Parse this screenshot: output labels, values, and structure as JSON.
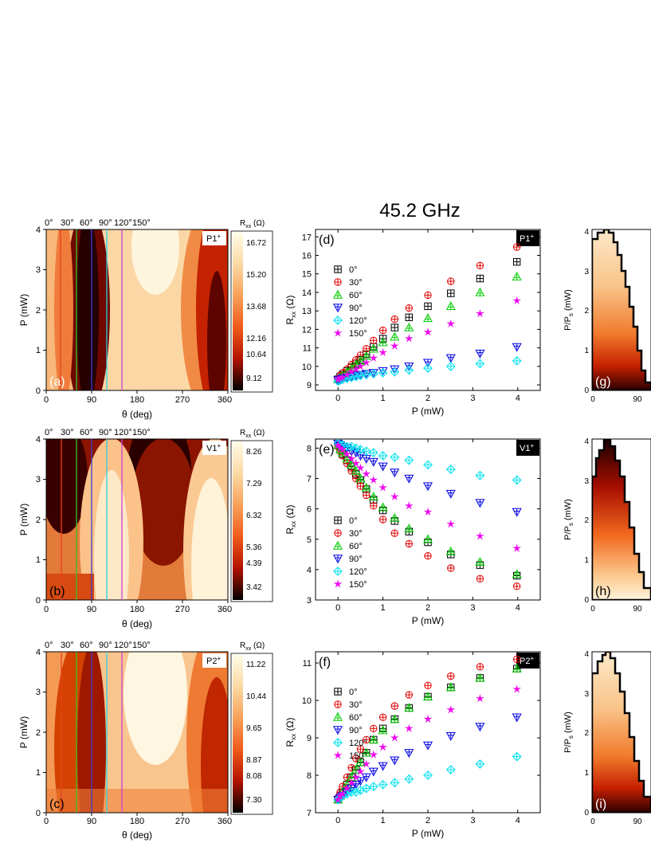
{
  "figure": {
    "title": "45.2 GHz",
    "angle_labels": [
      "0°",
      "30°",
      "60°",
      "90°",
      "120°",
      "150°"
    ],
    "angle_colors": [
      "#e8401c",
      "#35c21e",
      "#3c3cd0",
      "#30d0e0",
      "#d040d0"
    ],
    "colors": {
      "series": [
        "#000000",
        "#e00000",
        "#00cc00",
        "#0000e0",
        "#00e0ee",
        "#ee00ee"
      ],
      "heat": [
        "#000000",
        "#6a0000",
        "#c31900",
        "#f25300",
        "#fba35a",
        "#fde7c5",
        "#fffde8"
      ],
      "tag_bg": "#000000"
    }
  },
  "maps": [
    {
      "panel": "(a)",
      "tag": "P1",
      "tag_sup": "+",
      "xlabel": "θ (deg)",
      "ylabel": "P (mW)",
      "xticks": [
        "0",
        "90",
        "180",
        "270",
        "360"
      ],
      "yticks": [
        "0",
        "1",
        "2",
        "3",
        "4"
      ],
      "cbar_title": "R",
      "cbar_sub": "xx",
      "cbar_unit": " (Ω)",
      "cbar_ticks": [
        "16.72",
        "15.20",
        "13.68",
        "12.16",
        "10.64",
        "9.12"
      ]
    },
    {
      "panel": "(b)",
      "tag": "V1",
      "tag_sup": "+",
      "xlabel": "θ (deg)",
      "ylabel": "P (mW)",
      "xticks": [
        "0",
        "90",
        "180",
        "270",
        "360"
      ],
      "yticks": [
        "0",
        "1",
        "2",
        "3",
        "4"
      ],
      "cbar_title": "R",
      "cbar_sub": "xx",
      "cbar_unit": " (Ω)",
      "cbar_ticks": [
        "8.26",
        "7.29",
        "6.32",
        "5.36",
        "4.39",
        "3.42"
      ]
    },
    {
      "panel": "(c)",
      "tag": "P2",
      "tag_sup": "+",
      "xlabel": "θ (deg)",
      "ylabel": "P (mW)",
      "xticks": [
        "0",
        "90",
        "180",
        "270",
        "360"
      ],
      "yticks": [
        "0",
        "1",
        "2",
        "3",
        "4"
      ],
      "cbar_title": "R",
      "cbar_sub": "xx",
      "cbar_unit": " (Ω)",
      "cbar_ticks": [
        "11.22",
        "10.44",
        "9.65",
        "8.87",
        "8.08",
        "7.30"
      ]
    }
  ],
  "side_panels": [
    {
      "panel": "(g)",
      "ylabel": "P/P",
      "ylabel_sub": "s",
      "ylabel_unit": " (mW)",
      "yticks": [
        "0",
        "1",
        "2",
        "3",
        "4"
      ],
      "xticks": [
        "0",
        "90"
      ]
    },
    {
      "panel": "(h)",
      "ylabel": "P/P",
      "ylabel_sub": "s",
      "ylabel_unit": " (mW)",
      "yticks": [
        "0",
        "1",
        "2",
        "3",
        "4"
      ],
      "xticks": [
        "0",
        "90"
      ]
    },
    {
      "panel": "(i)",
      "ylabel": "P/P",
      "ylabel_sub": "s",
      "ylabel_unit": " (mW)",
      "yticks": [
        "0",
        "1",
        "2",
        "3",
        "4"
      ],
      "xticks": [
        "0",
        "90"
      ]
    }
  ],
  "chart_data": [
    {
      "type": "scatter",
      "panel": "(d)",
      "tag": "P1",
      "tag_sup": "+",
      "xlabel": "P (mW)",
      "ylabel": "R",
      "ylabel_sub": "xx",
      "ylabel_unit": " (Ω)",
      "xlim": [
        -0.5,
        4.5
      ],
      "ylim": [
        8.7,
        17.4
      ],
      "xticks": [
        0,
        1,
        2,
        3,
        4
      ],
      "yticks": [
        9,
        10,
        11,
        12,
        13,
        14,
        15,
        16,
        17
      ],
      "x": [
        0,
        0.05,
        0.1,
        0.2,
        0.3,
        0.4,
        0.5,
        0.63,
        0.79,
        1.0,
        1.26,
        1.58,
        2.0,
        2.51,
        3.16,
        3.98
      ],
      "legend_position": "upper-left",
      "series": [
        {
          "name": "0°",
          "marker": "square-plus",
          "values": [
            9.3,
            9.45,
            9.55,
            9.75,
            9.95,
            10.15,
            10.35,
            10.65,
            11.05,
            11.5,
            12.1,
            12.65,
            13.25,
            13.95,
            14.75,
            15.65
          ]
        },
        {
          "name": "30°",
          "marker": "circle-plus",
          "values": [
            9.35,
            9.5,
            9.65,
            9.85,
            10.1,
            10.35,
            10.6,
            10.95,
            11.4,
            11.95,
            12.55,
            13.15,
            13.85,
            14.6,
            15.45,
            16.45
          ]
        },
        {
          "name": "60°",
          "marker": "triangle-up",
          "values": [
            9.3,
            9.4,
            9.5,
            9.7,
            9.9,
            10.1,
            10.3,
            10.55,
            10.95,
            11.3,
            11.6,
            12.1,
            12.6,
            13.25,
            14.0,
            14.85
          ]
        },
        {
          "name": "90°",
          "marker": "triangle-down",
          "values": [
            9.25,
            9.3,
            9.35,
            9.4,
            9.45,
            9.5,
            9.55,
            9.6,
            9.65,
            9.75,
            9.85,
            10.0,
            10.2,
            10.45,
            10.7,
            11.05
          ]
        },
        {
          "name": "120°",
          "marker": "diamond",
          "values": [
            9.2,
            9.25,
            9.3,
            9.35,
            9.4,
            9.45,
            9.5,
            9.55,
            9.6,
            9.65,
            9.7,
            9.8,
            9.9,
            10.0,
            10.15,
            10.3
          ]
        },
        {
          "name": "150°",
          "marker": "star",
          "values": [
            9.3,
            9.35,
            9.4,
            9.55,
            9.7,
            9.85,
            10.0,
            10.2,
            10.45,
            10.75,
            11.1,
            11.5,
            11.85,
            12.3,
            12.85,
            13.55
          ]
        }
      ]
    },
    {
      "type": "scatter",
      "panel": "(e)",
      "tag": "V1",
      "tag_sup": "+",
      "xlabel": "P (mW)",
      "ylabel": "R",
      "ylabel_sub": "xx",
      "ylabel_unit": " (Ω)",
      "xlim": [
        -0.5,
        4.5
      ],
      "ylim": [
        3,
        8.3
      ],
      "xticks": [
        0,
        1,
        2,
        3,
        4
      ],
      "yticks": [
        3,
        4,
        5,
        6,
        7,
        8
      ],
      "x": [
        0,
        0.05,
        0.1,
        0.2,
        0.3,
        0.4,
        0.5,
        0.63,
        0.79,
        1.0,
        1.26,
        1.58,
        2.0,
        2.51,
        3.16,
        3.98
      ],
      "legend_position": "lower-left",
      "series": [
        {
          "name": "0°",
          "marker": "square-plus",
          "values": [
            8.1,
            7.95,
            7.8,
            7.6,
            7.4,
            7.15,
            6.95,
            6.65,
            6.3,
            5.95,
            5.6,
            5.25,
            4.9,
            4.5,
            4.15,
            3.8
          ]
        },
        {
          "name": "30°",
          "marker": "circle-plus",
          "values": [
            8.05,
            7.9,
            7.75,
            7.5,
            7.25,
            7.0,
            6.75,
            6.45,
            6.1,
            5.65,
            5.2,
            4.85,
            4.45,
            4.05,
            3.7,
            3.45
          ]
        },
        {
          "name": "60°",
          "marker": "triangle-up",
          "values": [
            8.1,
            7.95,
            7.85,
            7.65,
            7.45,
            7.25,
            7.0,
            6.7,
            6.4,
            6.05,
            5.7,
            5.35,
            5.0,
            4.6,
            4.25,
            3.85
          ]
        },
        {
          "name": "90°",
          "marker": "triangle-down",
          "values": [
            8.15,
            8.1,
            8.05,
            8.0,
            7.9,
            7.85,
            7.75,
            7.65,
            7.55,
            7.4,
            7.2,
            7.0,
            6.75,
            6.5,
            6.2,
            5.9
          ]
        },
        {
          "name": "120°",
          "marker": "diamond",
          "values": [
            8.15,
            8.1,
            8.1,
            8.05,
            8.05,
            8.0,
            7.95,
            7.9,
            7.85,
            7.75,
            7.7,
            7.6,
            7.45,
            7.3,
            7.1,
            6.95
          ]
        },
        {
          "name": "150°",
          "marker": "star",
          "values": [
            8.1,
            8.0,
            7.95,
            7.8,
            7.65,
            7.5,
            7.35,
            7.15,
            6.95,
            6.7,
            6.4,
            6.1,
            5.9,
            5.5,
            5.1,
            4.7
          ]
        }
      ]
    },
    {
      "type": "scatter",
      "panel": "(f)",
      "tag": "P2",
      "tag_sup": "+",
      "xlabel": "P (mW)",
      "ylabel": "R",
      "ylabel_sub": "xx",
      "ylabel_unit": " (Ω)",
      "xlim": [
        -0.5,
        4.5
      ],
      "ylim": [
        7,
        11.3
      ],
      "xticks": [
        0,
        1,
        2,
        3,
        4
      ],
      "yticks": [
        7,
        8,
        9,
        10,
        11
      ],
      "x": [
        0,
        0.05,
        0.1,
        0.2,
        0.3,
        0.4,
        0.5,
        0.63,
        0.79,
        1.0,
        1.26,
        1.58,
        2.0,
        2.51,
        3.16,
        3.98
      ],
      "legend_position": "upper-left",
      "series": [
        {
          "name": "0°",
          "marker": "square-plus",
          "values": [
            7.35,
            7.45,
            7.55,
            7.75,
            7.95,
            8.15,
            8.35,
            8.6,
            8.95,
            9.25,
            9.5,
            9.8,
            10.1,
            10.35,
            10.6,
            10.85
          ]
        },
        {
          "name": "30°",
          "marker": "circle-plus",
          "values": [
            7.4,
            7.55,
            7.7,
            7.95,
            8.2,
            8.45,
            8.7,
            8.95,
            9.25,
            9.55,
            9.85,
            10.15,
            10.4,
            10.65,
            10.9,
            11.1
          ]
        },
        {
          "name": "60°",
          "marker": "triangle-up",
          "values": [
            7.35,
            7.45,
            7.55,
            7.75,
            7.95,
            8.15,
            8.35,
            8.6,
            8.95,
            9.2,
            9.5,
            9.8,
            10.1,
            10.35,
            10.6,
            10.85
          ]
        },
        {
          "name": "90°",
          "marker": "triangle-down",
          "values": [
            7.35,
            7.4,
            7.45,
            7.55,
            7.65,
            7.75,
            7.85,
            7.95,
            8.1,
            8.25,
            8.4,
            8.6,
            8.8,
            9.05,
            9.3,
            9.55
          ]
        },
        {
          "name": "120°",
          "marker": "diamond",
          "values": [
            7.35,
            7.4,
            7.45,
            7.5,
            7.55,
            7.55,
            7.6,
            7.65,
            7.7,
            7.75,
            7.8,
            7.9,
            8.0,
            8.15,
            8.3,
            8.5
          ]
        },
        {
          "name": "150°",
          "marker": "star",
          "values": [
            7.35,
            7.45,
            7.5,
            7.65,
            7.8,
            7.95,
            8.1,
            8.3,
            8.55,
            8.75,
            9.0,
            9.25,
            9.5,
            9.75,
            10.05,
            10.3
          ]
        }
      ]
    }
  ]
}
